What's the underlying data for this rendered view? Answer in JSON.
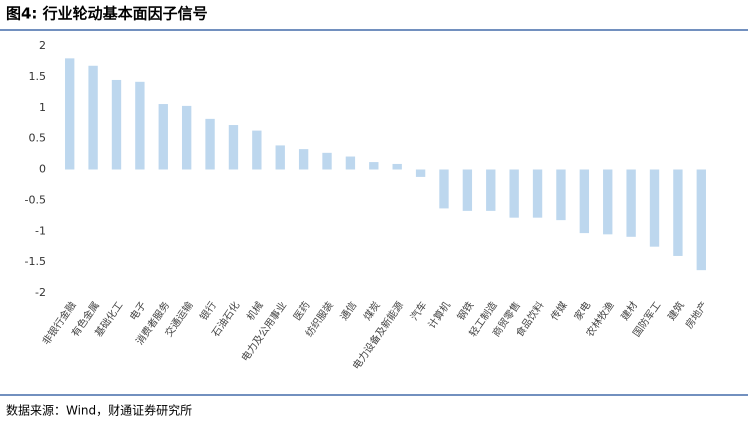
{
  "chart_data": {
    "type": "bar",
    "title": "图4: 行业轮动基本面因子信号",
    "categories": [
      "非银行金融",
      "有色金属",
      "基础化工",
      "电子",
      "消费者服务",
      "交通运输",
      "银行",
      "石油石化",
      "机械",
      "电力及公用事业",
      "医药",
      "纺织服装",
      "通信",
      "煤炭",
      "电力设备及新能源",
      "汽车",
      "计算机",
      "钢铁",
      "轻工制造",
      "商贸零售",
      "食品饮料",
      "传媒",
      "家电",
      "农林牧渔",
      "建材",
      "国防军工",
      "建筑",
      "房地产"
    ],
    "values": [
      1.8,
      1.68,
      1.45,
      1.42,
      1.06,
      1.03,
      0.82,
      0.72,
      0.63,
      0.39,
      0.33,
      0.27,
      0.21,
      0.12,
      0.09,
      -0.12,
      -0.63,
      -0.67,
      -0.67,
      -0.78,
      -0.78,
      -0.82,
      -1.03,
      -1.05,
      -1.09,
      -1.25,
      -1.4,
      -1.63
    ],
    "color": "#bdd7ee",
    "ylim": [
      -2,
      2
    ],
    "yticks": [
      2,
      1.5,
      1,
      0.5,
      0,
      -0.5,
      -1,
      -1.5,
      -2
    ],
    "grid": false
  },
  "source": "数据来源：Wind，财通证券研究所"
}
